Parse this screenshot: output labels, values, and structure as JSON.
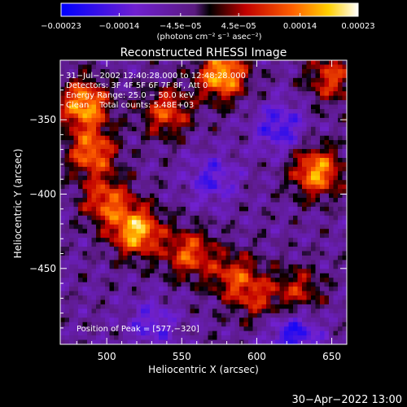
{
  "chart_data": {
    "type": "heatmap",
    "title": "Reconstructed RHESSI Image",
    "xlabel": "Heliocentric X (arcsec)",
    "ylabel": "Heliocentric Y (arcsec)",
    "xlim": [
      469,
      660
    ],
    "ylim": [
      -501,
      -310
    ],
    "x_ticks": [
      500,
      550,
      600,
      650
    ],
    "x_tick_labels": [
      "500",
      "550",
      "600",
      "650"
    ],
    "y_ticks": [
      -350,
      -400,
      -450
    ],
    "y_tick_labels": [
      "−350",
      "−400",
      "−450"
    ],
    "colorbar": {
      "range": [
        -0.00023,
        0.00023
      ],
      "ticks": [
        -0.00023,
        -0.00014,
        -4.5e-05,
        4.5e-05,
        0.00014,
        0.00023
      ],
      "tick_labels": [
        "−0.00023",
        "−0.00014",
        "−4.5e−05",
        "4.5e−05",
        "0.00014",
        "0.00023"
      ],
      "unit": "(photons cm⁻² s⁻¹ asec⁻²)"
    },
    "annotations": [
      "31−Jul−2002 12:40:28.000 to 12:48:28.000",
      "Detectors: 3F 4F 5F 6F 7F 8F, Att 0",
      "Energy Range: 25.0 − 50.0 keV",
      "Clean    Total counts: 5.48E+03"
    ],
    "peak_label": "Position of Peak = [577,−320]",
    "peak": [
      577,
      -320
    ],
    "bright_regions": [
      {
        "x": 485,
        "y": -340,
        "intensity": 0.00022
      },
      {
        "x": 490,
        "y": -372,
        "intensity": 0.00018
      },
      {
        "x": 500,
        "y": -405,
        "intensity": 0.00016
      },
      {
        "x": 520,
        "y": -425,
        "intensity": 0.00023
      },
      {
        "x": 540,
        "y": -345,
        "intensity": 0.00015
      },
      {
        "x": 577,
        "y": -320,
        "intensity": 0.00023
      },
      {
        "x": 555,
        "y": -440,
        "intensity": 0.00016
      },
      {
        "x": 585,
        "y": -455,
        "intensity": 0.00013
      },
      {
        "x": 640,
        "y": -385,
        "intensity": 0.00021
      },
      {
        "x": 650,
        "y": -322,
        "intensity": 0.00014
      },
      {
        "x": 600,
        "y": -470,
        "intensity": 0.0001
      },
      {
        "x": 628,
        "y": -465,
        "intensity": 0.00011
      }
    ],
    "dim_regions": [
      {
        "x": 615,
        "y": -355,
        "intensity": -0.00012
      },
      {
        "x": 570,
        "y": -390,
        "intensity": -0.0001
      },
      {
        "x": 625,
        "y": -495,
        "intensity": -0.00014
      },
      {
        "x": 530,
        "y": -488,
        "intensity": -9e-05
      }
    ]
  },
  "footer": {
    "timestamp": "30−Apr−2022 13:00"
  }
}
